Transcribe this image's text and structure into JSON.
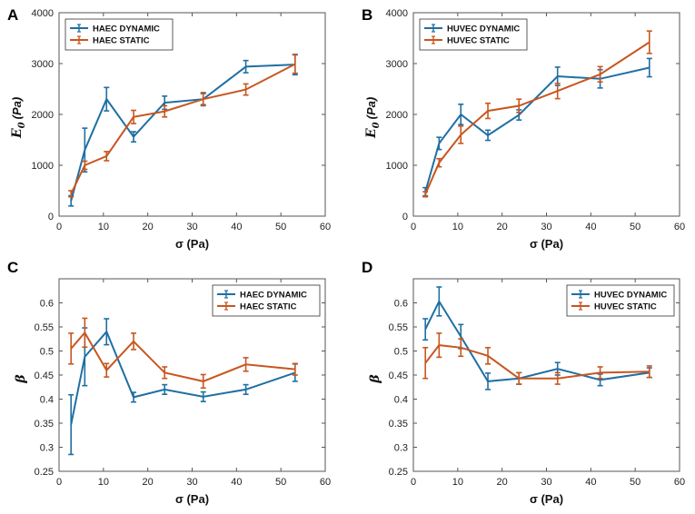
{
  "colors": {
    "dynamic": "#1f6fa3",
    "static": "#c8561f"
  },
  "chart_data": [
    {
      "panel": "A",
      "type": "line",
      "xlabel": "σ (Pa)",
      "ylabel_main": "E",
      "ylabel_sub": "0",
      "ylabel_unit": "(Pa)",
      "xlim": [
        0,
        60
      ],
      "ylim": [
        0,
        4000
      ],
      "xticks": [
        0,
        10,
        20,
        30,
        40,
        50,
        60
      ],
      "yticks": [
        0,
        1000,
        2000,
        3000,
        4000
      ],
      "legend_position": "top-left",
      "series": [
        {
          "name": "HAEC DYNAMIC",
          "color_key": "dynamic",
          "x": [
            2.7,
            5.8,
            10.7,
            16.8,
            23.8,
            32.5,
            42.1,
            53.2
          ],
          "y": [
            300,
            1300,
            2300,
            1560,
            2230,
            2300,
            2940,
            2980
          ],
          "err": [
            100,
            430,
            230,
            100,
            130,
            110,
            120,
            200
          ]
        },
        {
          "name": "HAEC STATIC",
          "color_key": "static",
          "x": [
            2.7,
            5.8,
            10.7,
            16.8,
            23.8,
            32.5,
            42.1,
            53.2
          ],
          "y": [
            440,
            1000,
            1180,
            1950,
            2060,
            2300,
            2490,
            2990
          ],
          "err": [
            60,
            80,
            90,
            130,
            110,
            130,
            110,
            180
          ]
        }
      ]
    },
    {
      "panel": "B",
      "type": "line",
      "xlabel": "σ (Pa)",
      "ylabel_main": "E",
      "ylabel_sub": "0",
      "ylabel_unit": "(Pa)",
      "xlim": [
        0,
        60
      ],
      "ylim": [
        0,
        4000
      ],
      "xticks": [
        0,
        10,
        20,
        30,
        40,
        50,
        60
      ],
      "yticks": [
        0,
        1000,
        2000,
        3000,
        4000
      ],
      "legend_position": "top-left",
      "series": [
        {
          "name": "HUVEC DYNAMIC",
          "color_key": "dynamic",
          "x": [
            2.7,
            5.8,
            10.7,
            16.8,
            23.8,
            32.5,
            42.1,
            53.2
          ],
          "y": [
            480,
            1430,
            2000,
            1590,
            1990,
            2750,
            2700,
            2920
          ],
          "err": [
            80,
            120,
            200,
            100,
            100,
            180,
            180,
            180
          ]
        },
        {
          "name": "HUVEC STATIC",
          "color_key": "static",
          "x": [
            2.7,
            5.8,
            10.7,
            16.8,
            23.8,
            32.5,
            42.1,
            53.2
          ],
          "y": [
            430,
            1050,
            1600,
            2070,
            2170,
            2460,
            2790,
            3420
          ],
          "err": [
            50,
            80,
            170,
            150,
            130,
            150,
            150,
            220
          ]
        }
      ]
    },
    {
      "panel": "C",
      "type": "line",
      "xlabel": "σ (Pa)",
      "ylabel": "β",
      "xlim": [
        0,
        60
      ],
      "ylim": [
        0.25,
        0.65
      ],
      "xticks": [
        0,
        10,
        20,
        30,
        40,
        50,
        60
      ],
      "yticks": [
        0.25,
        0.3,
        0.35,
        0.4,
        0.45,
        0.5,
        0.55,
        0.6
      ],
      "legend_position": "top-right",
      "series": [
        {
          "name": "HAEC DYNAMIC",
          "color_key": "dynamic",
          "x": [
            2.7,
            5.8,
            10.7,
            16.8,
            23.8,
            32.5,
            42.1,
            53.2
          ],
          "y": [
            0.347,
            0.488,
            0.54,
            0.404,
            0.42,
            0.405,
            0.42,
            0.455
          ],
          "err": [
            0.062,
            0.06,
            0.027,
            0.01,
            0.01,
            0.01,
            0.01,
            0.018
          ]
        },
        {
          "name": "HAEC STATIC",
          "color_key": "static",
          "x": [
            2.7,
            5.8,
            10.7,
            16.8,
            23.8,
            32.5,
            42.1,
            53.2
          ],
          "y": [
            0.505,
            0.538,
            0.46,
            0.52,
            0.455,
            0.437,
            0.472,
            0.462
          ],
          "err": [
            0.032,
            0.03,
            0.014,
            0.017,
            0.012,
            0.014,
            0.014,
            0.012
          ]
        }
      ]
    },
    {
      "panel": "D",
      "type": "line",
      "xlabel": "σ (Pa)",
      "ylabel": "β",
      "xlim": [
        0,
        60
      ],
      "ylim": [
        0.25,
        0.65
      ],
      "xticks": [
        0,
        10,
        20,
        30,
        40,
        50,
        60
      ],
      "yticks": [
        0.25,
        0.3,
        0.35,
        0.4,
        0.45,
        0.5,
        0.55,
        0.6
      ],
      "legend_position": "top-right",
      "series": [
        {
          "name": "HUVEC DYNAMIC",
          "color_key": "dynamic",
          "x": [
            2.7,
            5.8,
            10.7,
            16.8,
            23.8,
            32.5,
            42.1,
            53.2
          ],
          "y": [
            0.545,
            0.603,
            0.53,
            0.437,
            0.443,
            0.463,
            0.44,
            0.455
          ],
          "err": [
            0.022,
            0.03,
            0.025,
            0.017,
            0.012,
            0.013,
            0.012,
            0.01
          ]
        },
        {
          "name": "HUVEC STATIC",
          "color_key": "static",
          "x": [
            2.7,
            5.8,
            10.7,
            16.8,
            23.8,
            32.5,
            42.1,
            53.2
          ],
          "y": [
            0.475,
            0.512,
            0.507,
            0.49,
            0.443,
            0.443,
            0.455,
            0.457
          ],
          "err": [
            0.032,
            0.025,
            0.018,
            0.017,
            0.012,
            0.012,
            0.012,
            0.012
          ]
        }
      ]
    }
  ]
}
